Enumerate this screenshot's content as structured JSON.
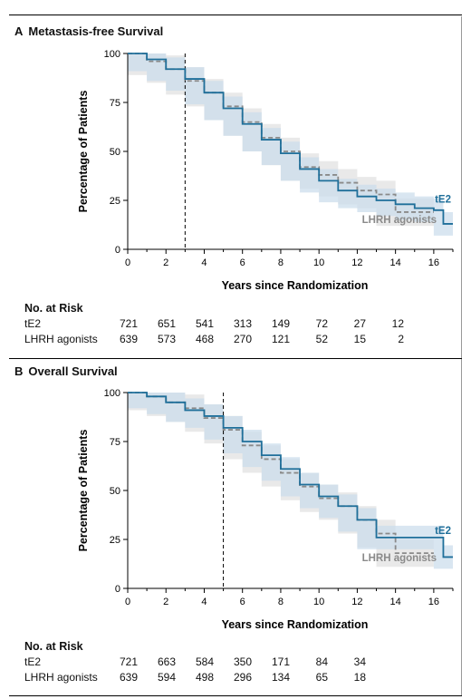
{
  "panels": [
    {
      "letter": "A",
      "title": "Metastasis-free Survival",
      "risk_heading": "No. at Risk",
      "risk": [
        {
          "label": "tE2",
          "values": [
            "721",
            "651",
            "541",
            "313",
            "149",
            "72",
            "27",
            "12"
          ]
        },
        {
          "label": "LHRH agonists",
          "values": [
            "639",
            "573",
            "468",
            "270",
            "121",
            "52",
            "15",
            "2"
          ]
        }
      ]
    },
    {
      "letter": "B",
      "title": "Overall Survival",
      "risk_heading": "No. at Risk",
      "risk": [
        {
          "label": "tE2",
          "values": [
            "721",
            "663",
            "584",
            "350",
            "171",
            "84",
            "34"
          ]
        },
        {
          "label": "LHRH agonists",
          "values": [
            "639",
            "594",
            "498",
            "296",
            "134",
            "65",
            "18"
          ]
        }
      ]
    }
  ],
  "colors": {
    "te2": "#1f6f9a",
    "lhrh": "#8a8a8a",
    "band_te2": "#c9dbeb",
    "band_lhrh": "#e2e2e2"
  },
  "chart_data": [
    {
      "type": "line",
      "title": "Metastasis-free Survival",
      "xlabel": "Years since Randomization",
      "ylabel": "Percentage of Patients",
      "xlim": [
        0,
        17
      ],
      "ylim": [
        0,
        100
      ],
      "xticks": [
        0,
        2,
        4,
        6,
        8,
        10,
        12,
        14,
        16
      ],
      "yticks": [
        0,
        25,
        50,
        75,
        100
      ],
      "reference_line_x": 3,
      "series": [
        {
          "name": "tE2",
          "x": [
            0,
            1,
            2,
            3,
            4,
            5,
            6,
            7,
            8,
            9,
            10,
            11,
            12,
            13,
            14,
            15,
            16,
            16.5,
            17
          ],
          "y": [
            100,
            97,
            92,
            87,
            80,
            72,
            64,
            56,
            49,
            41,
            35,
            30,
            27,
            25,
            23,
            21,
            20,
            13,
            13
          ]
        },
        {
          "name": "LHRH agonists",
          "x": [
            0,
            1,
            2,
            3,
            4,
            5,
            6,
            7,
            8,
            9,
            10,
            11,
            12,
            13,
            14,
            15,
            16
          ],
          "y": [
            100,
            96,
            92,
            86,
            80,
            73,
            65,
            57,
            50,
            42,
            38,
            34,
            30,
            28,
            19,
            19,
            19
          ]
        }
      ],
      "grid": false
    },
    {
      "type": "line",
      "title": "Overall Survival",
      "xlabel": "Years since Randomization",
      "ylabel": "Percentage of Patients",
      "xlim": [
        0,
        17
      ],
      "ylim": [
        0,
        100
      ],
      "xticks": [
        0,
        2,
        4,
        6,
        8,
        10,
        12,
        14,
        16
      ],
      "yticks": [
        0,
        25,
        50,
        75,
        100
      ],
      "reference_line_x": 5,
      "series": [
        {
          "name": "tE2",
          "x": [
            0,
            1,
            2,
            3,
            4,
            5,
            6,
            7,
            8,
            9,
            10,
            11,
            12,
            13,
            14,
            15,
            16,
            16.5,
            17
          ],
          "y": [
            100,
            98,
            95,
            91,
            88,
            82,
            75,
            68,
            61,
            53,
            47,
            42,
            35,
            26,
            26,
            26,
            26,
            16,
            16
          ]
        },
        {
          "name": "LHRH agonists",
          "x": [
            0,
            1,
            2,
            3,
            4,
            5,
            6,
            7,
            8,
            9,
            10,
            11,
            12,
            13,
            14,
            15,
            16
          ],
          "y": [
            100,
            98,
            95,
            92,
            87,
            81,
            73,
            66,
            59,
            52,
            46,
            42,
            35,
            28,
            18,
            18,
            18
          ]
        }
      ],
      "grid": false
    }
  ]
}
